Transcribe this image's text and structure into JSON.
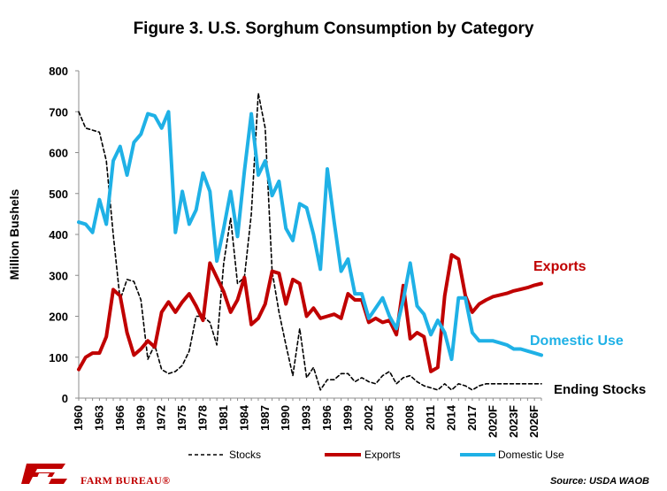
{
  "colors": {
    "stocks": "#000000",
    "exports": "#c00000",
    "domestic": "#1fb1e6",
    "brand": "#c00000"
  },
  "footer": {
    "brand_name": "FARM BUREAU®",
    "source": "Source: USDA WAOB"
  },
  "logo": {
    "icon": "farm-bureau-logo-icon"
  },
  "chart_data": {
    "type": "line",
    "title": "Figure 3. U.S. Sorghum Consumption by Category",
    "ylabel": "Million Bushels",
    "xlabel": "",
    "ylim": [
      0,
      800
    ],
    "yticks": [
      0,
      100,
      200,
      300,
      400,
      500,
      600,
      700,
      800
    ],
    "grid": false,
    "legend_position": "bottom",
    "categories": [
      "1960",
      "1961",
      "1962",
      "1963",
      "1964",
      "1965",
      "1966",
      "1967",
      "1968",
      "1969",
      "1970",
      "1971",
      "1972",
      "1973",
      "1974",
      "1975",
      "1976",
      "1977",
      "1978",
      "1979",
      "1980",
      "1981",
      "1982",
      "1983",
      "1984",
      "1985",
      "1986",
      "1987",
      "1988",
      "1989",
      "1990",
      "1991",
      "1992",
      "1993",
      "1994",
      "1995",
      "1996",
      "1997",
      "1998",
      "1999",
      "2000",
      "2001",
      "2002",
      "2003",
      "2004",
      "2005",
      "2006",
      "2007",
      "2008",
      "2009",
      "2010",
      "2011",
      "2012",
      "2013",
      "2014",
      "2015",
      "2016",
      "2017",
      "2018",
      "2019",
      "2020F",
      "2021F",
      "2022F",
      "2023F",
      "2024F",
      "2025F",
      "2026F",
      "2027F"
    ],
    "tick_labels": [
      "1960",
      "1963",
      "1966",
      "1969",
      "1972",
      "1975",
      "1978",
      "1981",
      "1984",
      "1987",
      "1990",
      "1993",
      "1996",
      "1999",
      "2002",
      "2005",
      "2008",
      "2011",
      "2014",
      "2017",
      "2020F",
      "2023F",
      "2026F"
    ],
    "series": [
      {
        "name": "Stocks",
        "key": "stocks",
        "style": "dashed",
        "values": [
          700,
          660,
          655,
          650,
          580,
          400,
          240,
          290,
          285,
          240,
          95,
          130,
          70,
          60,
          65,
          80,
          115,
          200,
          200,
          185,
          130,
          330,
          440,
          280,
          295,
          450,
          745,
          660,
          310,
          210,
          130,
          55,
          170,
          50,
          75,
          20,
          45,
          45,
          60,
          60,
          40,
          50,
          40,
          35,
          55,
          65,
          35,
          50,
          55,
          40,
          30,
          25,
          20,
          35,
          20,
          35,
          30,
          20,
          30,
          35,
          35,
          35,
          35,
          35,
          35,
          35,
          35,
          35
        ]
      },
      {
        "name": "Exports",
        "key": "exports",
        "style": "solid",
        "label": "Exports",
        "values": [
          70,
          100,
          110,
          110,
          150,
          265,
          250,
          160,
          105,
          120,
          140,
          125,
          210,
          235,
          210,
          235,
          255,
          225,
          190,
          330,
          295,
          260,
          210,
          240,
          295,
          180,
          195,
          230,
          310,
          305,
          230,
          290,
          280,
          200,
          220,
          195,
          200,
          205,
          195,
          255,
          240,
          240,
          185,
          195,
          185,
          190,
          155,
          275,
          145,
          160,
          150,
          65,
          75,
          250,
          350,
          340,
          250,
          210,
          230,
          240,
          248,
          252,
          256,
          262,
          266,
          270,
          276,
          280
        ]
      },
      {
        "name": "Domestic Use",
        "key": "domestic",
        "style": "solid",
        "label": "Domestic Use",
        "values": [
          430,
          425,
          405,
          485,
          425,
          580,
          615,
          545,
          625,
          645,
          695,
          690,
          660,
          700,
          405,
          505,
          425,
          460,
          550,
          505,
          335,
          415,
          505,
          395,
          555,
          695,
          545,
          580,
          495,
          530,
          415,
          385,
          475,
          465,
          400,
          315,
          560,
          430,
          310,
          340,
          255,
          255,
          195,
          220,
          245,
          200,
          170,
          240,
          330,
          225,
          205,
          155,
          190,
          160,
          95,
          245,
          245,
          160,
          140,
          140,
          140,
          135,
          130,
          120,
          120,
          115,
          110,
          105
        ]
      }
    ],
    "end_labels": [
      {
        "key": "exports",
        "text": "Exports"
      },
      {
        "key": "domestic",
        "text": "Domestic Use"
      },
      {
        "key": "stocks",
        "text": "Ending Stocks"
      }
    ]
  }
}
